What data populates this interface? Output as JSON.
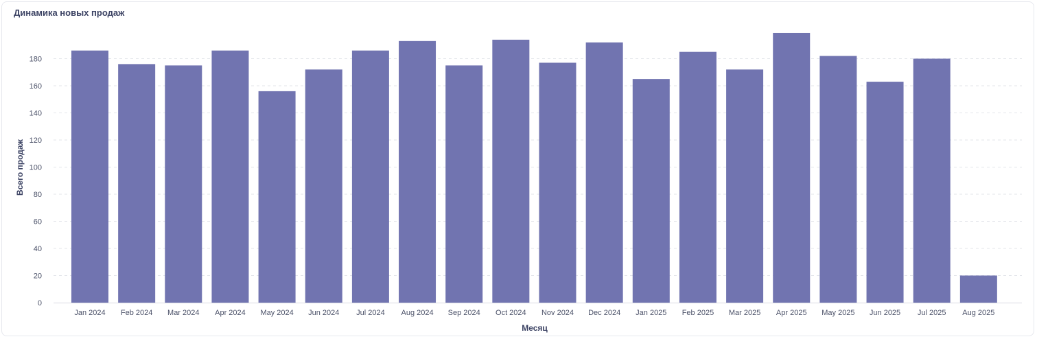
{
  "chart_data": {
    "type": "bar",
    "title": "Динамика новых продаж",
    "xlabel": "Месяц",
    "ylabel": "Всего продаж",
    "ylim": [
      0,
      200
    ],
    "yticks": [
      0,
      20,
      40,
      60,
      80,
      100,
      120,
      140,
      160,
      180
    ],
    "grid": true,
    "bar_color": "#7174b0",
    "categories": [
      "Jan 2024",
      "Feb 2024",
      "Mar 2024",
      "Apr 2024",
      "May 2024",
      "Jun 2024",
      "Jul 2024",
      "Aug 2024",
      "Sep 2024",
      "Oct 2024",
      "Nov 2024",
      "Dec 2024",
      "Jan 2025",
      "Feb 2025",
      "Mar 2025",
      "Apr 2025",
      "May 2025",
      "Jun 2025",
      "Jul 2025",
      "Aug 2025"
    ],
    "values": [
      186,
      176,
      175,
      186,
      156,
      172,
      186,
      193,
      175,
      194,
      177,
      192,
      165,
      185,
      172,
      199,
      182,
      163,
      180,
      20
    ]
  }
}
